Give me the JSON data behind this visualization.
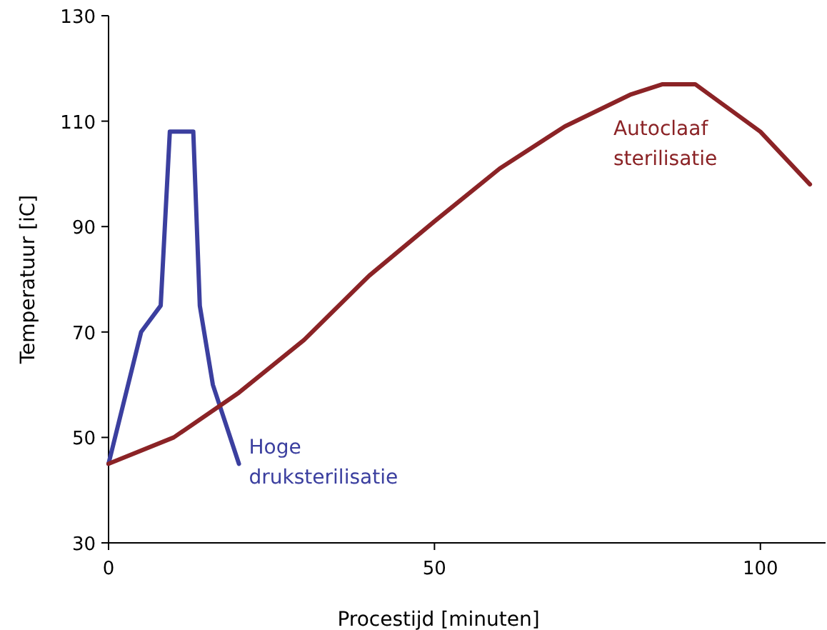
{
  "chart_data": {
    "type": "line",
    "xlabel": "Procestijd [minuten]",
    "ylabel": "Temperatuur [iC]",
    "xlim": [
      0,
      110
    ],
    "xticks": [
      0,
      50,
      100
    ],
    "ylim": [
      30,
      130
    ],
    "yticks": [
      30,
      50,
      70,
      90,
      110,
      130
    ],
    "grid": false,
    "marker": "none",
    "line_style": "solid",
    "series": [
      {
        "name": "Hoge druksterilisatie",
        "color": "#3b3f9f",
        "x": [
          0,
          5,
          8,
          9.4,
          13,
          14,
          16,
          20
        ],
        "values": [
          45,
          70,
          75,
          108,
          108,
          75,
          60,
          45
        ]
      },
      {
        "name": "Autoclaaf sterilisatie",
        "color": "#8b2326",
        "x": [
          0,
          10,
          20,
          30,
          40,
          50,
          60,
          70,
          80,
          85,
          90,
          100,
          107.6
        ],
        "values": [
          45,
          50,
          58.5,
          68.5,
          80.7,
          91,
          101,
          109,
          115,
          117,
          117,
          108,
          98
        ]
      }
    ]
  }
}
